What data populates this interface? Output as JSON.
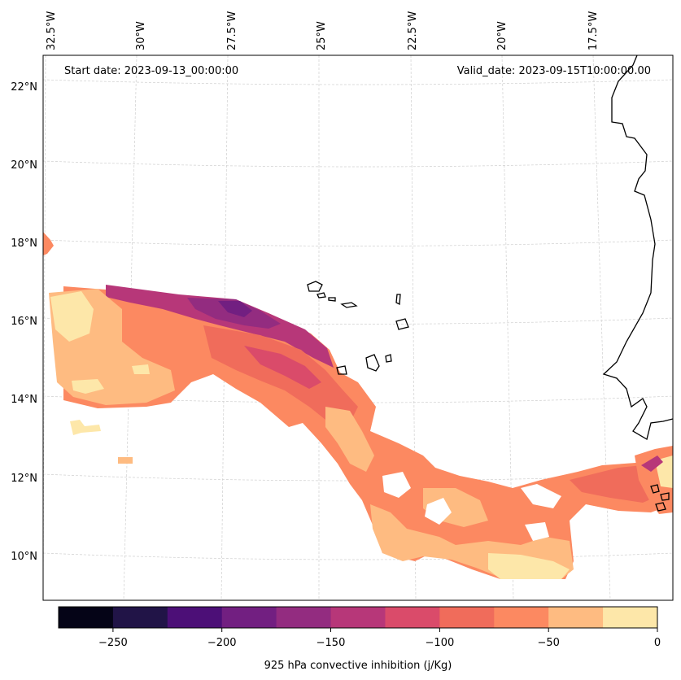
{
  "map": {
    "start_date_text": "Start date: 2023-09-13_00:00:00",
    "valid_date_text": "Valid_date: 2023-09-15T10:00:00.00",
    "longitude_labels": [
      "32.5°W",
      "30°W",
      "27.5°W",
      "25°W",
      "22.5°W",
      "20°W",
      "17.5°W"
    ],
    "latitude_labels": [
      "22°N",
      "20°N",
      "18°N",
      "16°N",
      "14°N",
      "12°N",
      "10°N"
    ],
    "gridlines": true,
    "coastline_color": "#000000"
  },
  "colorbar": {
    "label": "925 hPa convective inhibition (j/Kg)",
    "ticks": [
      "−250",
      "−200",
      "−150",
      "−100",
      "−50",
      "0"
    ],
    "levels": [
      -275,
      -250,
      -225,
      -200,
      -175,
      -150,
      -125,
      -100,
      -75,
      -50,
      -25,
      0
    ],
    "colors": [
      "#050417",
      "#211447",
      "#4c0f77",
      "#721f81",
      "#932c80",
      "#b73779",
      "#da4b6a",
      "#f06c5b",
      "#fc8961",
      "#febb81",
      "#fde7a9"
    ]
  }
}
